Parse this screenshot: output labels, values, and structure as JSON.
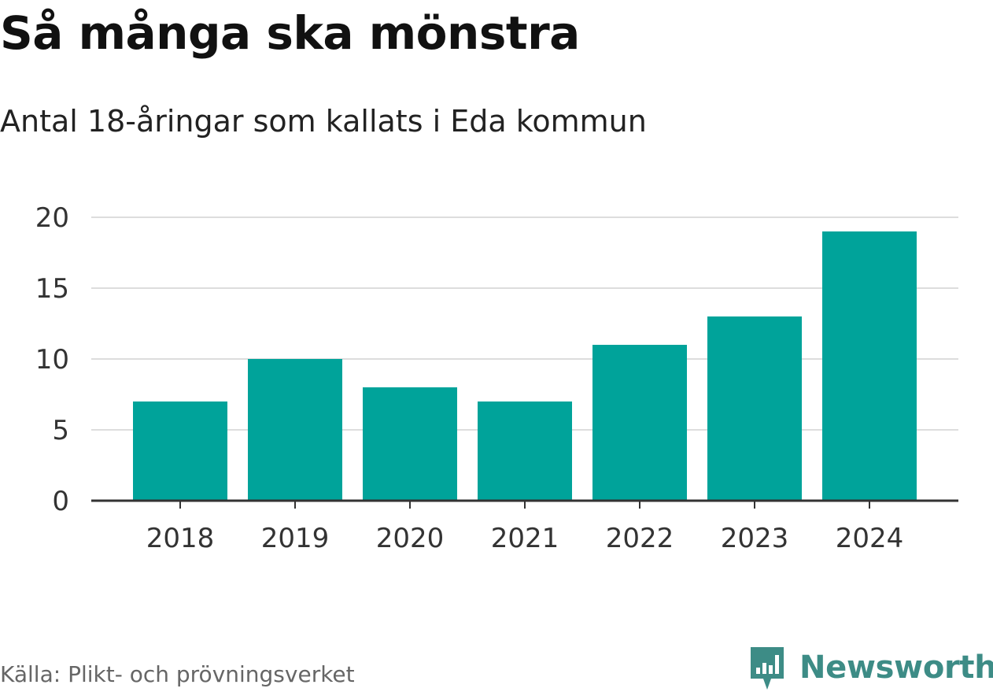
{
  "chart_data": {
    "type": "bar",
    "title": "Så många ska mönstra",
    "subtitle": "Antal 18-åringar som kallats i Eda kommun",
    "categories": [
      "2018",
      "2019",
      "2020",
      "2021",
      "2022",
      "2023",
      "2024"
    ],
    "values": [
      7,
      10,
      8,
      7,
      11,
      13,
      19
    ],
    "y_ticks": [
      "0",
      "5",
      "10",
      "15",
      "20"
    ],
    "ylim": [
      0,
      20
    ],
    "xlabel": "",
    "ylabel": "",
    "grid": true,
    "bar_color": "#00a39a"
  },
  "footer": {
    "source": "Källa: Plikt- och prövningsverket",
    "brand": "Newsworthy",
    "brand_icon": "newsworthy-logo-icon",
    "brand_color": "#3d8c86"
  }
}
